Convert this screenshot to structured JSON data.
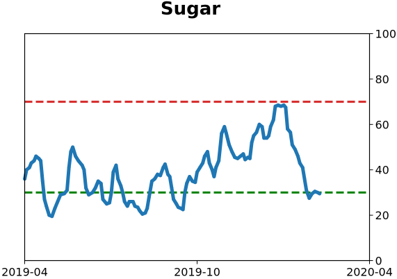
{
  "chart_data": {
    "type": "line",
    "title": "Sugar",
    "xlabel": "",
    "ylabel": "",
    "x_ticks": [
      "2019-04",
      "2019-10",
      "2020-04"
    ],
    "x_range": [
      "2019-04-01",
      "2020-04-01"
    ],
    "y_ticks": [
      "0",
      "20",
      "40",
      "60",
      "80",
      "100"
    ],
    "ylim": [
      0,
      100
    ],
    "y_axis_side": "right",
    "grid": false,
    "legend": "none",
    "reference_lines": [
      {
        "y": 70,
        "color": "#d62728",
        "style": "dashed"
      },
      {
        "y": 30,
        "color": "#008000",
        "style": "dashed"
      }
    ],
    "series": [
      {
        "color": "#1f77b4",
        "points": [
          [
            "2019-04-01",
            36
          ],
          [
            "2019-04-03",
            40
          ],
          [
            "2019-04-06",
            41
          ],
          [
            "2019-04-08",
            43
          ],
          [
            "2019-04-11",
            44
          ],
          [
            "2019-04-13",
            46
          ],
          [
            "2019-04-16",
            45
          ],
          [
            "2019-04-18",
            44
          ],
          [
            "2019-04-20",
            35
          ],
          [
            "2019-04-22",
            27
          ],
          [
            "2019-04-24",
            24
          ],
          [
            "2019-04-27",
            20
          ],
          [
            "2019-04-30",
            19.5
          ],
          [
            "2019-05-03",
            23
          ],
          [
            "2019-05-06",
            26
          ],
          [
            "2019-05-09",
            29
          ],
          [
            "2019-05-13",
            29.5
          ],
          [
            "2019-05-16",
            31
          ],
          [
            "2019-05-18",
            41
          ],
          [
            "2019-05-20",
            48
          ],
          [
            "2019-05-22",
            50
          ],
          [
            "2019-05-25",
            46
          ],
          [
            "2019-05-28",
            44
          ],
          [
            "2019-06-01",
            42
          ],
          [
            "2019-06-03",
            40
          ],
          [
            "2019-06-05",
            32
          ],
          [
            "2019-06-08",
            29
          ],
          [
            "2019-06-12",
            30
          ],
          [
            "2019-06-15",
            32
          ],
          [
            "2019-06-18",
            35
          ],
          [
            "2019-06-21",
            34
          ],
          [
            "2019-06-23",
            27
          ],
          [
            "2019-06-27",
            25
          ],
          [
            "2019-06-30",
            25.5
          ],
          [
            "2019-07-02",
            30
          ],
          [
            "2019-07-04",
            39
          ],
          [
            "2019-07-07",
            42
          ],
          [
            "2019-07-09",
            36
          ],
          [
            "2019-07-12",
            33
          ],
          [
            "2019-07-14",
            30
          ],
          [
            "2019-07-16",
            26
          ],
          [
            "2019-07-19",
            24
          ],
          [
            "2019-07-21",
            26
          ],
          [
            "2019-07-25",
            26
          ],
          [
            "2019-07-27",
            24
          ],
          [
            "2019-07-30",
            23.5
          ],
          [
            "2019-08-01",
            22
          ],
          [
            "2019-08-04",
            20.5
          ],
          [
            "2019-08-07",
            21
          ],
          [
            "2019-08-09",
            23
          ],
          [
            "2019-08-11",
            28
          ],
          [
            "2019-08-14",
            35
          ],
          [
            "2019-08-17",
            36
          ],
          [
            "2019-08-20",
            38
          ],
          [
            "2019-08-23",
            37.5
          ],
          [
            "2019-08-26",
            41
          ],
          [
            "2019-08-28",
            42.5
          ],
          [
            "2019-08-31",
            38
          ],
          [
            "2019-09-02",
            37
          ],
          [
            "2019-09-04",
            32
          ],
          [
            "2019-09-06",
            27
          ],
          [
            "2019-09-09",
            25
          ],
          [
            "2019-09-11",
            23.5
          ],
          [
            "2019-09-14",
            23
          ],
          [
            "2019-09-16",
            22.5
          ],
          [
            "2019-09-18",
            30
          ],
          [
            "2019-09-20",
            34
          ],
          [
            "2019-09-23",
            37
          ],
          [
            "2019-09-26",
            35
          ],
          [
            "2019-09-29",
            34.5
          ],
          [
            "2019-10-01",
            39
          ],
          [
            "2019-10-04",
            41
          ],
          [
            "2019-10-07",
            43
          ],
          [
            "2019-10-09",
            46
          ],
          [
            "2019-10-12",
            48
          ],
          [
            "2019-10-14",
            43
          ],
          [
            "2019-10-17",
            40
          ],
          [
            "2019-10-19",
            37
          ],
          [
            "2019-10-21",
            41
          ],
          [
            "2019-10-24",
            44
          ],
          [
            "2019-10-27",
            56
          ],
          [
            "2019-10-30",
            59
          ],
          [
            "2019-11-01",
            56
          ],
          [
            "2019-11-04",
            51
          ],
          [
            "2019-11-07",
            48
          ],
          [
            "2019-11-10",
            45.5
          ],
          [
            "2019-11-13",
            45
          ],
          [
            "2019-11-16",
            46
          ],
          [
            "2019-11-19",
            47
          ],
          [
            "2019-11-21",
            44.5
          ],
          [
            "2019-11-24",
            45.5
          ],
          [
            "2019-11-26",
            45
          ],
          [
            "2019-11-28",
            52
          ],
          [
            "2019-11-30",
            55
          ],
          [
            "2019-12-03",
            56.5
          ],
          [
            "2019-12-06",
            60
          ],
          [
            "2019-12-09",
            59
          ],
          [
            "2019-12-11",
            54
          ],
          [
            "2019-12-14",
            54
          ],
          [
            "2019-12-16",
            55
          ],
          [
            "2019-12-18",
            59
          ],
          [
            "2019-12-21",
            62
          ],
          [
            "2019-12-23",
            68
          ],
          [
            "2019-12-26",
            68.5
          ],
          [
            "2019-12-29",
            68
          ],
          [
            "2020-01-01",
            68.5
          ],
          [
            "2020-01-03",
            67.5
          ],
          [
            "2020-01-05",
            58
          ],
          [
            "2020-01-08",
            56.5
          ],
          [
            "2020-01-10",
            51
          ],
          [
            "2020-01-13",
            49
          ],
          [
            "2020-01-16",
            46
          ],
          [
            "2020-01-18",
            43
          ],
          [
            "2020-01-21",
            41
          ],
          [
            "2020-01-23",
            36
          ],
          [
            "2020-01-25",
            31
          ],
          [
            "2020-01-28",
            27.5
          ],
          [
            "2020-01-31",
            29.5
          ],
          [
            "2020-02-03",
            30.5
          ],
          [
            "2020-02-06",
            30
          ],
          [
            "2020-02-08",
            29.5
          ]
        ]
      }
    ]
  },
  "colors": {
    "line": "#1f77b4",
    "upper_threshold": "#d62728",
    "lower_threshold": "#008000",
    "axes": "#000000"
  }
}
